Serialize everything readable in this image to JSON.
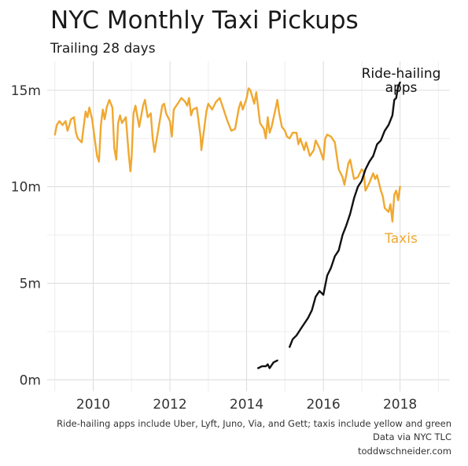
{
  "chart_data": {
    "type": "line",
    "title": "NYC Monthly Taxi Pickups",
    "subtitle": "Trailing 28 days",
    "xlabel": "",
    "ylabel": "",
    "x_ticks": [
      "2010",
      "2012",
      "2014",
      "2016",
      "2018"
    ],
    "y_ticks": [
      "0m",
      "5m",
      "10m",
      "15m"
    ],
    "xlim": [
      2008.8,
      2019.3
    ],
    "ylim": [
      -0.6,
      16.5
    ],
    "grid": true,
    "series": [
      {
        "name": "Taxis",
        "color": "#f0a830",
        "x": [
          2009.0,
          2009.05,
          2009.12,
          2009.2,
          2009.28,
          2009.33,
          2009.38,
          2009.42,
          2009.5,
          2009.55,
          2009.6,
          2009.7,
          2009.8,
          2009.85,
          2009.9,
          2009.97,
          2010.05,
          2010.1,
          2010.15,
          2010.2,
          2010.25,
          2010.3,
          2010.35,
          2010.42,
          2010.5,
          2010.55,
          2010.6,
          2010.65,
          2010.7,
          2010.75,
          2010.85,
          2010.92,
          2010.97,
          2011.0,
          2011.05,
          2011.1,
          2011.2,
          2011.3,
          2011.35,
          2011.42,
          2011.5,
          2011.55,
          2011.6,
          2011.7,
          2011.8,
          2011.85,
          2011.9,
          2012.0,
          2012.05,
          2012.1,
          2012.2,
          2012.3,
          2012.4,
          2012.45,
          2012.5,
          2012.55,
          2012.6,
          2012.7,
          2012.8,
          2012.82,
          2012.86,
          2012.95,
          2013.0,
          2013.1,
          2013.2,
          2013.3,
          2013.4,
          2013.5,
          2013.6,
          2013.7,
          2013.8,
          2013.85,
          2013.9,
          2014.0,
          2014.05,
          2014.1,
          2014.2,
          2014.25,
          2014.3,
          2014.35,
          2014.45,
          2014.5,
          2014.55,
          2014.6,
          2014.65,
          2014.75,
          2014.8,
          2014.85,
          2014.92,
          2015.0,
          2015.05,
          2015.12,
          2015.2,
          2015.3,
          2015.35,
          2015.4,
          2015.5,
          2015.55,
          2015.65,
          2015.75,
          2015.8,
          2015.9,
          2016.0,
          2016.05,
          2016.1,
          2016.2,
          2016.3,
          2016.4,
          2016.5,
          2016.55,
          2016.65,
          2016.7,
          2016.8,
          2016.9,
          2017.0,
          2017.05,
          2017.1,
          2017.2,
          2017.3,
          2017.35,
          2017.4,
          2017.5,
          2017.55,
          2017.6,
          2017.7,
          2017.75,
          2017.8,
          2017.85,
          2017.9,
          2017.95,
          2018.0
        ],
        "y": [
          12.7,
          13.2,
          13.4,
          13.2,
          13.4,
          12.9,
          13.2,
          13.5,
          13.6,
          12.8,
          12.5,
          12.3,
          13.9,
          13.6,
          14.1,
          13.5,
          12.3,
          11.6,
          11.3,
          13.2,
          14.0,
          13.5,
          14.1,
          14.5,
          14.1,
          12.0,
          11.4,
          13.3,
          13.7,
          13.3,
          13.6,
          11.8,
          10.8,
          11.5,
          13.8,
          14.2,
          13.1,
          14.2,
          14.5,
          13.6,
          13.8,
          12.5,
          11.8,
          13.0,
          14.2,
          14.3,
          13.8,
          13.4,
          12.6,
          14.0,
          14.3,
          14.6,
          14.4,
          14.2,
          14.6,
          13.7,
          14.0,
          14.1,
          12.6,
          11.9,
          12.5,
          13.9,
          14.3,
          14.0,
          14.4,
          14.6,
          14.0,
          13.4,
          12.9,
          13.0,
          14.1,
          14.4,
          14.0,
          14.6,
          15.1,
          15.0,
          14.3,
          14.9,
          14.1,
          13.3,
          13.0,
          12.5,
          13.6,
          12.8,
          13.1,
          14.0,
          14.5,
          13.8,
          13.1,
          12.9,
          12.6,
          12.5,
          12.8,
          12.8,
          12.2,
          12.5,
          11.9,
          12.3,
          11.6,
          11.9,
          12.4,
          12.0,
          11.4,
          12.5,
          12.7,
          12.6,
          12.3,
          10.9,
          10.5,
          10.1,
          11.2,
          11.4,
          10.4,
          10.5,
          10.9,
          10.8,
          9.8,
          10.2,
          10.7,
          10.4,
          10.6,
          9.8,
          9.5,
          8.9,
          8.7,
          9.1,
          8.2,
          9.6,
          9.8,
          9.3,
          10.0
        ],
        "label": "Taxis"
      },
      {
        "name": "Ride-hailing apps",
        "color": "#111111",
        "x": [
          2014.3,
          2014.4,
          2014.5,
          2014.55,
          2014.6,
          2014.7,
          2014.8,
          2015.12,
          2015.2,
          2015.3,
          2015.4,
          2015.5,
          2015.6,
          2015.7,
          2015.8,
          2015.9,
          2016.0,
          2016.1,
          2016.2,
          2016.3,
          2016.4,
          2016.5,
          2016.6,
          2016.7,
          2016.8,
          2016.9,
          2017.0,
          2017.1,
          2017.2,
          2017.3,
          2017.4,
          2017.5,
          2017.6,
          2017.7,
          2017.8,
          2017.85,
          2017.9,
          2017.95,
          2018.0
        ],
        "y": [
          0.6,
          0.7,
          0.7,
          0.8,
          0.6,
          0.9,
          1.0,
          1.7,
          2.1,
          2.3,
          2.6,
          2.9,
          3.2,
          3.6,
          4.3,
          4.6,
          4.4,
          5.4,
          5.8,
          6.4,
          6.7,
          7.5,
          8.0,
          8.6,
          9.4,
          10.0,
          10.3,
          10.9,
          11.3,
          11.6,
          12.2,
          12.4,
          12.9,
          13.2,
          13.7,
          14.5,
          14.6,
          15.2,
          15.4
        ],
        "label": "Ride-hailing apps"
      }
    ],
    "annotations": {
      "taxis_label": "Taxis",
      "rideshare_label_line1": "Ride-hailing",
      "rideshare_label_line2": "apps"
    }
  },
  "caption": {
    "line1": "Ride-hailing apps include Uber, Lyft, Juno, Via, and Gett; taxis include yellow and green",
    "line2": "Data via NYC TLC",
    "line3": "toddwschneider.com"
  }
}
